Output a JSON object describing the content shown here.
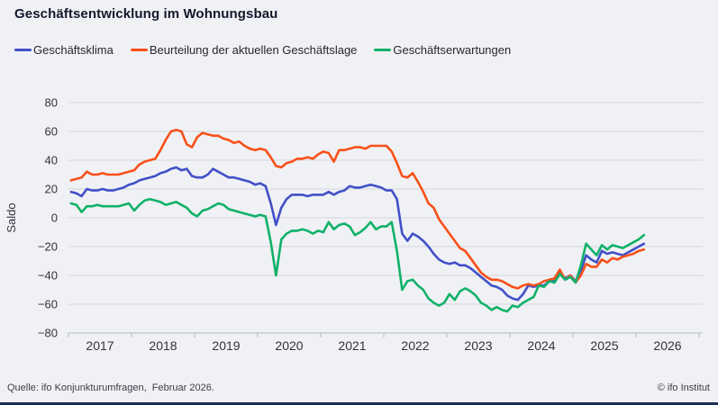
{
  "page": {
    "title": "Geschäftsentwicklung im Wohnungsbau",
    "source": "Quelle: ifo Konjunkturumfragen,  Februar 2026.",
    "copyright": "© ifo Institut"
  },
  "colors": {
    "klima": "#4150c8",
    "lage": "#f85019",
    "erwartungen": "#10b169",
    "grid": "#d6d8de",
    "axis": "#b6b9c3",
    "tick_text": "#32323e",
    "title_text": "#16162c",
    "footer_text": "#3c3c49",
    "background": "#f0f1f4",
    "bottom_bar": "#1c2e52"
  },
  "axes": {
    "ylabel": "Saldo",
    "y_ticks": [
      {
        "v": 80,
        "label": "80"
      },
      {
        "v": 60,
        "label": "60"
      },
      {
        "v": 40,
        "label": "40"
      },
      {
        "v": 20,
        "label": "20"
      },
      {
        "v": 0,
        "label": "0"
      },
      {
        "v": -20,
        "label": "−20"
      },
      {
        "v": -40,
        "label": "−40"
      },
      {
        "v": -60,
        "label": "−60"
      },
      {
        "v": -80,
        "label": "−80"
      }
    ],
    "year_labels": [
      "2017",
      "2018",
      "2019",
      "2020",
      "2021",
      "2022",
      "2023",
      "2024",
      "2025",
      "2026"
    ]
  },
  "chart_data": {
    "type": "line",
    "title": "Geschäftsentwicklung im Wohnungsbau",
    "xlabel": "",
    "ylabel": "Saldo",
    "ylim": [
      -80,
      80
    ],
    "ytick_step": 20,
    "grid": "horizontal",
    "legend_position": "top-left",
    "x_start": "2017-01",
    "x_end": "2026-02",
    "freq": "monthly",
    "series": [
      {
        "name": "Geschäftsklima",
        "color_key": "klima",
        "values": [
          18,
          17,
          15,
          20,
          19,
          19,
          20,
          19,
          19,
          20,
          21,
          23,
          24,
          26,
          27,
          28,
          29,
          31,
          32,
          34,
          35,
          33,
          34,
          29,
          28,
          28,
          30,
          34,
          32,
          30,
          28,
          28,
          27,
          26,
          25,
          23,
          24,
          22,
          10,
          -5,
          7,
          13,
          16,
          16,
          16,
          15,
          16,
          16,
          16,
          18,
          16,
          18,
          19,
          22,
          21,
          21,
          22,
          23,
          22,
          21,
          19,
          19,
          13,
          -11,
          -16,
          -11,
          -13,
          -16,
          -20,
          -25,
          -29,
          -31,
          -32,
          -31,
          -33,
          -33,
          -35,
          -38,
          -41,
          -44,
          -47,
          -48,
          -50,
          -54,
          -56,
          -57,
          -53,
          -47,
          -48,
          -47,
          -47,
          -44,
          -44,
          -38,
          -42,
          -40,
          -44,
          -37,
          -26,
          -29,
          -31,
          -23,
          -25,
          -24,
          -25,
          -26,
          -24,
          -22,
          -20,
          -18
        ]
      },
      {
        "name": "Beurteilung der aktuellen Geschäftslage",
        "color_key": "lage",
        "values": [
          26,
          27,
          28,
          32,
          30,
          30,
          31,
          30,
          30,
          30,
          31,
          32,
          33,
          37,
          39,
          40,
          41,
          47,
          54,
          60,
          61,
          60,
          51,
          49,
          56,
          59,
          58,
          57,
          57,
          55,
          54,
          52,
          53,
          50,
          48,
          47,
          48,
          47,
          42,
          36,
          35,
          38,
          39,
          41,
          41,
          42,
          41,
          44,
          46,
          45,
          39,
          47,
          47,
          48,
          49,
          49,
          48,
          50,
          50,
          50,
          50,
          46,
          38,
          29,
          28,
          31,
          25,
          18,
          10,
          7,
          -1,
          -6,
          -11,
          -16,
          -21,
          -23,
          -28,
          -33,
          -38,
          -41,
          -43,
          -43,
          -44,
          -46,
          -48,
          -49,
          -47,
          -46,
          -47,
          -46,
          -44,
          -43,
          -42,
          -36,
          -43,
          -40,
          -45,
          -40,
          -32,
          -34,
          -34,
          -29,
          -31,
          -28,
          -29,
          -27,
          -26,
          -25,
          -23,
          -22
        ]
      },
      {
        "name": "Geschäftserwartungen",
        "color_key": "erwartungen",
        "values": [
          10,
          9,
          4,
          8,
          8,
          9,
          8,
          8,
          8,
          8,
          9,
          10,
          5,
          9,
          12,
          13,
          12,
          11,
          9,
          10,
          11,
          9,
          7,
          3,
          1,
          5,
          6,
          8,
          10,
          9,
          6,
          5,
          4,
          3,
          2,
          1,
          2,
          1,
          -17,
          -40,
          -15,
          -11,
          -9,
          -9,
          -8,
          -9,
          -11,
          -9,
          -10,
          -3,
          -8,
          -5,
          -4,
          -6,
          -12,
          -10,
          -7,
          -3,
          -8,
          -6,
          -6,
          -3,
          -23,
          -50,
          -44,
          -43,
          -47,
          -50,
          -56,
          -59,
          -61,
          -59,
          -53,
          -57,
          -51,
          -49,
          -51,
          -54,
          -59,
          -61,
          -64,
          -62,
          -64,
          -65,
          -61,
          -62,
          -59,
          -57,
          -55,
          -47,
          -48,
          -44,
          -45,
          -39,
          -43,
          -41,
          -45,
          -33,
          -18,
          -22,
          -26,
          -19,
          -22,
          -19,
          -20,
          -21,
          -19,
          -17,
          -15,
          -12
        ]
      }
    ]
  }
}
